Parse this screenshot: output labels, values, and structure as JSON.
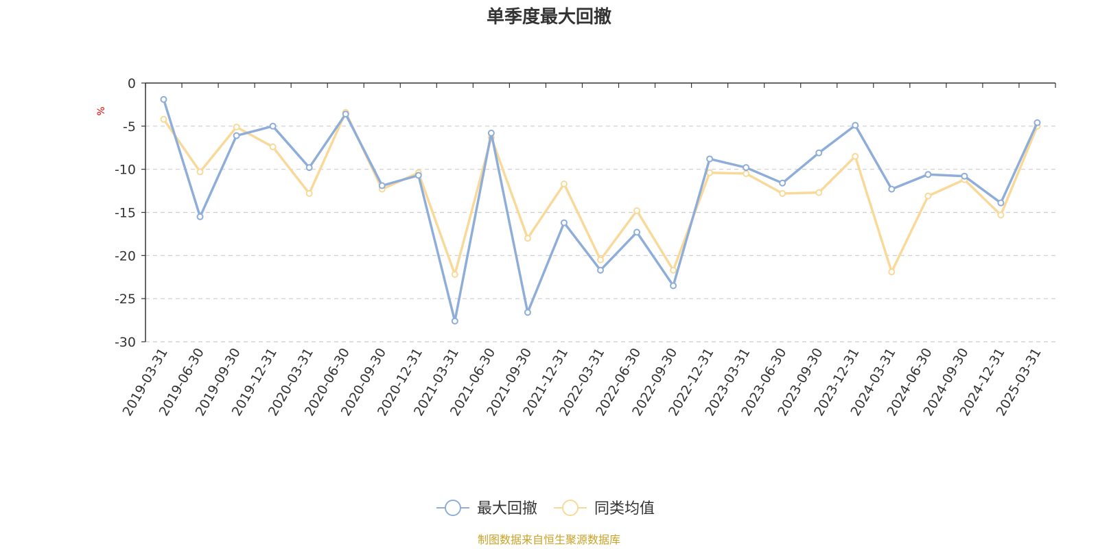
{
  "chart_data": {
    "type": "line",
    "title": "单季度最大回撤",
    "ylabel": "%",
    "ylim": [
      -30,
      0
    ],
    "yticks": [
      0,
      -5,
      -10,
      -15,
      -20,
      -25,
      -30
    ],
    "grid": true,
    "legend_position": "bottom",
    "categories": [
      "2019-03-31",
      "2019-06-30",
      "2019-09-30",
      "2019-12-31",
      "2020-03-31",
      "2020-06-30",
      "2020-09-30",
      "2020-12-31",
      "2021-03-31",
      "2021-06-30",
      "2021-09-30",
      "2021-12-31",
      "2022-03-31",
      "2022-06-30",
      "2022-09-30",
      "2022-12-31",
      "2023-03-31",
      "2023-06-30",
      "2023-09-30",
      "2023-12-31",
      "2024-03-31",
      "2024-06-30",
      "2024-09-30",
      "2024-12-31",
      "2025-03-31"
    ],
    "series": [
      {
        "name": "最大回撤",
        "color": "#8eadd9",
        "values": [
          -1.9,
          -15.5,
          -6.1,
          -5.0,
          -9.8,
          -3.6,
          -11.9,
          -10.7,
          -27.6,
          -5.8,
          -26.6,
          -16.2,
          -21.7,
          -17.3,
          -23.5,
          -8.8,
          -9.8,
          -11.6,
          -8.1,
          -4.9,
          -12.3,
          -10.6,
          -10.8,
          -13.9,
          -4.6
        ]
      },
      {
        "name": "同类均值",
        "color": "#f9d999",
        "values": [
          -4.2,
          -10.3,
          -5.1,
          -7.4,
          -12.8,
          -3.4,
          -12.3,
          -10.4,
          -22.2,
          -6.3,
          -18.0,
          -11.7,
          -20.5,
          -14.8,
          -21.7,
          -10.4,
          -10.5,
          -12.8,
          -12.7,
          -8.5,
          -21.9,
          -13.1,
          -11.2,
          -15.3,
          -5.0
        ]
      }
    ],
    "source_note": "制图数据来自恒生聚源数据库"
  }
}
